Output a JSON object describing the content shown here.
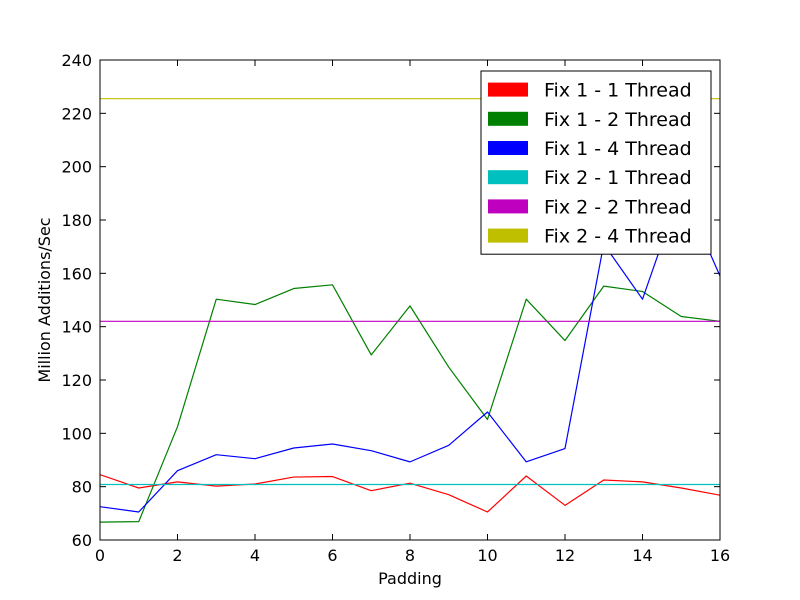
{
  "chart_data": {
    "type": "line",
    "title": "",
    "xlabel": "Padding",
    "ylabel": "Million Additions/Sec",
    "xlim": [
      0,
      16
    ],
    "ylim": [
      60,
      240
    ],
    "xticks": [
      0,
      2,
      4,
      6,
      8,
      10,
      12,
      14,
      16
    ],
    "yticks": [
      60,
      80,
      100,
      120,
      140,
      160,
      180,
      200,
      220,
      240
    ],
    "grid": false,
    "legend_position": "top-right",
    "x": [
      0,
      1,
      2,
      3,
      4,
      5,
      6,
      7,
      8,
      9,
      10,
      11,
      12,
      13,
      14,
      15,
      16
    ],
    "series": [
      {
        "name": "Fix 1 - 1 Thread",
        "color": "#ff0000",
        "values": [
          84.5,
          79.5,
          81.8,
          80.2,
          81.0,
          83.6,
          83.8,
          78.5,
          81.3,
          77.0,
          70.5,
          84.0,
          73.0,
          82.5,
          81.8,
          79.5,
          76.8
        ]
      },
      {
        "name": "Fix 1 - 2 Thread",
        "color": "#008000",
        "values": [
          66.7,
          66.9,
          102.5,
          150.3,
          148.3,
          154.3,
          155.7,
          129.4,
          147.8,
          124.8,
          105.2,
          150.3,
          134.8,
          155.2,
          153.2,
          143.8,
          142.0
        ]
      },
      {
        "name": "Fix 1 - 4 Thread",
        "color": "#0000ff",
        "values": [
          72.5,
          70.5,
          86.0,
          92.0,
          90.5,
          94.5,
          96.0,
          93.5,
          89.3,
          95.5,
          108.0,
          89.3,
          94.3,
          171.0,
          150.3,
          192.0,
          159.0
        ]
      },
      {
        "name": "Fix 2 - 1 Thread",
        "color": "#00bfbf",
        "values": [
          80.8,
          80.8,
          80.8,
          80.8,
          80.8,
          80.8,
          80.8,
          80.8,
          80.8,
          80.8,
          80.8,
          80.8,
          80.8,
          80.8,
          80.8,
          80.8,
          80.8
        ]
      },
      {
        "name": "Fix 2 - 2 Thread",
        "color": "#bf00bf",
        "values": [
          142.0,
          142.0,
          142.0,
          142.0,
          142.0,
          142.0,
          142.0,
          142.0,
          142.0,
          142.0,
          142.0,
          142.0,
          142.0,
          142.0,
          142.0,
          142.0,
          142.0
        ]
      },
      {
        "name": "Fix 2 - 4 Thread",
        "color": "#bfbf00",
        "values": [
          225.5,
          225.5,
          225.5,
          225.5,
          225.5,
          225.5,
          225.5,
          225.5,
          225.5,
          225.5,
          225.5,
          225.5,
          225.5,
          225.5,
          225.5,
          225.5,
          225.5
        ]
      }
    ]
  }
}
